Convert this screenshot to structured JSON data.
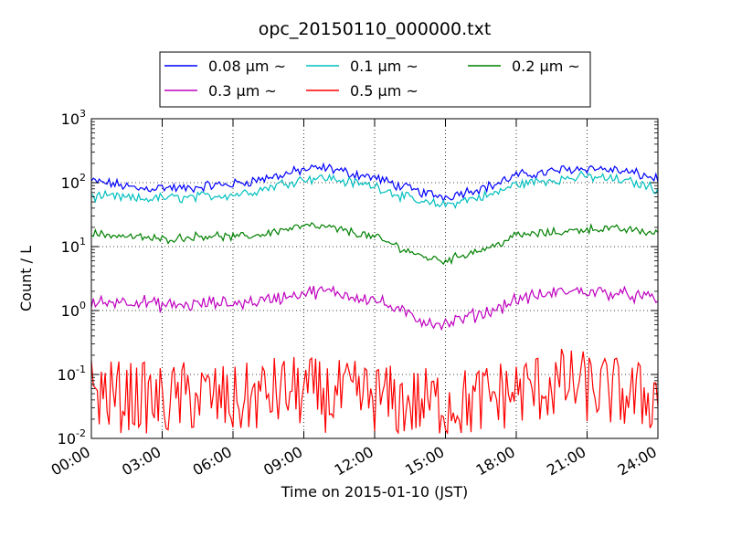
{
  "chart_data": {
    "type": "line",
    "title": "opc_20150110_000000.txt",
    "xlabel": "Time on 2015-01-10 (JST)",
    "ylabel": "Count / L",
    "yscale": "log",
    "ylim": [
      0.01,
      1000
    ],
    "xlim": [
      "2015-01-10 00:00",
      "2015-01-11 00:00"
    ],
    "x_tick_labels": [
      "00:00",
      "03:00",
      "06:00",
      "09:00",
      "12:00",
      "15:00",
      "18:00",
      "21:00",
      "24:00"
    ],
    "y_tick_labels": [
      {
        "base": "10",
        "exp": "-2"
      },
      {
        "base": "10",
        "exp": "-1"
      },
      {
        "base": "10",
        "exp": "0"
      },
      {
        "base": "10",
        "exp": "1"
      },
      {
        "base": "10",
        "exp": "2"
      },
      {
        "base": "10",
        "exp": "3"
      }
    ],
    "grid": true,
    "legend_position": "top",
    "x": [
      "00:00",
      "01:00",
      "02:00",
      "03:00",
      "04:00",
      "05:00",
      "06:00",
      "07:00",
      "08:00",
      "09:00",
      "10:00",
      "11:00",
      "12:00",
      "13:00",
      "14:00",
      "15:00",
      "16:00",
      "17:00",
      "18:00",
      "19:00",
      "20:00",
      "21:00",
      "22:00",
      "23:00",
      "24:00"
    ],
    "series": [
      {
        "name": "0.08 μm ~",
        "color": "#0000ff",
        "values": [
          105,
          95,
          80,
          85,
          80,
          90,
          95,
          110,
          130,
          160,
          170,
          140,
          120,
          90,
          70,
          60,
          75,
          90,
          130,
          140,
          160,
          170,
          160,
          140,
          115
        ]
      },
      {
        "name": "0.1 μm ~",
        "color": "#00bfbf",
        "values": [
          60,
          60,
          55,
          58,
          58,
          62,
          65,
          75,
          95,
          115,
          120,
          100,
          90,
          65,
          48,
          45,
          55,
          65,
          95,
          105,
          115,
          125,
          115,
          100,
          80
        ]
      },
      {
        "name": "0.2 μm ~",
        "color": "#008000",
        "values": [
          16,
          15,
          14,
          13,
          14,
          15,
          14,
          15,
          18,
          21,
          20,
          17,
          14,
          10,
          7,
          6,
          8,
          10,
          15,
          16,
          17,
          19,
          19,
          18,
          16
        ]
      },
      {
        "name": "0.3 μm ~",
        "color": "#bf00bf",
        "values": [
          1.3,
          1.4,
          1.4,
          1.2,
          1.2,
          1.3,
          1.3,
          1.4,
          1.6,
          1.9,
          2.0,
          1.7,
          1.5,
          1.0,
          0.7,
          0.6,
          0.8,
          1.0,
          1.5,
          1.7,
          2.0,
          2.0,
          1.9,
          1.7,
          1.5
        ]
      },
      {
        "name": "0.5 μm ~",
        "color": "#ff0000",
        "values": [
          0.06,
          0.05,
          0.05,
          0.04,
          0.05,
          0.05,
          0.04,
          0.05,
          0.06,
          0.06,
          0.05,
          0.05,
          0.05,
          0.04,
          0.04,
          0.04,
          0.04,
          0.05,
          0.06,
          0.07,
          0.08,
          0.07,
          0.06,
          0.05,
          0.05
        ]
      }
    ]
  }
}
